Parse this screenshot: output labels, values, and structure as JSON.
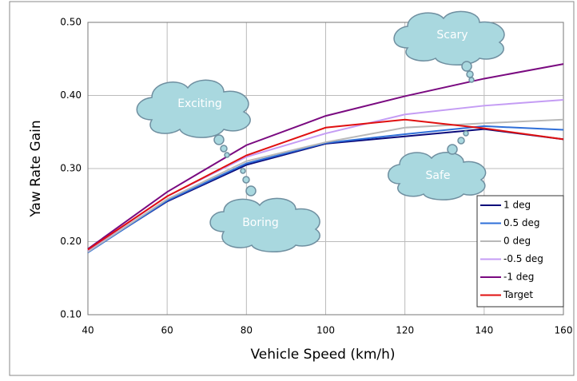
{
  "chart_data": {
    "type": "line",
    "x_label": "Vehicle Speed (km/h)",
    "y_label": "Yaw Rate Gain",
    "x": [
      40,
      60,
      80,
      100,
      120,
      140,
      160
    ],
    "series": [
      {
        "name": "1 deg",
        "color": "#0a0a7a",
        "values": [
          0.186,
          0.255,
          0.305,
          0.334,
          0.344,
          0.354,
          0.34
        ]
      },
      {
        "name": "0.5 deg",
        "color": "#2f6fd8",
        "values": [
          0.185,
          0.256,
          0.307,
          0.335,
          0.347,
          0.358,
          0.353
        ]
      },
      {
        "name": "0 deg",
        "color": "#b8b8b8",
        "values": [
          0.186,
          0.258,
          0.31,
          0.336,
          0.356,
          0.362,
          0.367
        ]
      },
      {
        "name": "-0.5 deg",
        "color": "#c49cf4",
        "values": [
          0.188,
          0.262,
          0.316,
          0.348,
          0.374,
          0.386,
          0.394
        ]
      },
      {
        "name": "-1 deg",
        "color": "#7a0a80",
        "values": [
          0.19,
          0.268,
          0.332,
          0.372,
          0.399,
          0.423,
          0.443
        ]
      },
      {
        "name": "Target",
        "color": "#e01010",
        "values": [
          0.189,
          0.262,
          0.318,
          0.356,
          0.367,
          0.355,
          0.34
        ]
      }
    ],
    "xlim": [
      40,
      160
    ],
    "xticks": [
      40,
      60,
      80,
      100,
      120,
      140,
      160
    ],
    "ylim": [
      0.1,
      0.5
    ],
    "yticks": [
      {
        "value": 0.1,
        "label": "0.10"
      },
      {
        "value": 0.2,
        "label": "0.20"
      },
      {
        "value": 0.3,
        "label": "0.30"
      },
      {
        "value": 0.4,
        "label": "0.40"
      },
      {
        "value": 0.5,
        "label": "0.50"
      }
    ],
    "grid": true,
    "legend": "lower right",
    "annotations": [
      "Exciting",
      "Boring",
      "Scary",
      "Safe"
    ]
  }
}
